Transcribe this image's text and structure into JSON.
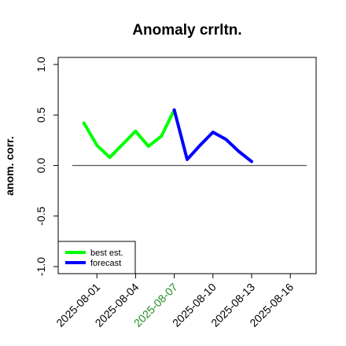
{
  "chart_data": {
    "type": "line",
    "title": "Anomaly crrltn.",
    "xlabel": "",
    "ylabel": "anom. corr.",
    "x": [
      "2025-07-31",
      "2025-08-01",
      "2025-08-02",
      "2025-08-03",
      "2025-08-04",
      "2025-08-05",
      "2025-08-06",
      "2025-08-07",
      "2025-08-08",
      "2025-08-09",
      "2025-08-10",
      "2025-08-11",
      "2025-08-12",
      "2025-08-13"
    ],
    "xlim": [
      "2025-07-29",
      "2025-08-18"
    ],
    "ylim": [
      -1.0,
      1.0
    ],
    "x_ticks": [
      "2025-08-01",
      "2025-08-04",
      "2025-08-07",
      "2025-08-10",
      "2025-08-13",
      "2025-08-16"
    ],
    "x_tick_highlight": "2025-08-07",
    "x_tick_highlight_color": "#228b22",
    "y_ticks": [
      -1.0,
      -0.5,
      0.0,
      0.5,
      1.0
    ],
    "y_tick_labels": [
      "-1.0",
      "-0.5",
      "0.0",
      "0.5",
      "1.0"
    ],
    "reference_line": 0.0,
    "series": [
      {
        "name": "best est.",
        "color": "#00ff00",
        "x": [
          "2025-07-31",
          "2025-08-01",
          "2025-08-02",
          "2025-08-03",
          "2025-08-04",
          "2025-08-05",
          "2025-08-06",
          "2025-08-07"
        ],
        "values": [
          0.42,
          0.2,
          0.08,
          0.21,
          0.34,
          0.19,
          0.29,
          0.55
        ]
      },
      {
        "name": "forecast",
        "color": "#0000ff",
        "x": [
          "2025-08-07",
          "2025-08-08",
          "2025-08-09",
          "2025-08-10",
          "2025-08-11",
          "2025-08-12",
          "2025-08-13"
        ],
        "values": [
          0.55,
          0.06,
          0.2,
          0.33,
          0.26,
          0.14,
          0.04
        ]
      }
    ],
    "legend_position": "bottom-left",
    "grid": false
  }
}
